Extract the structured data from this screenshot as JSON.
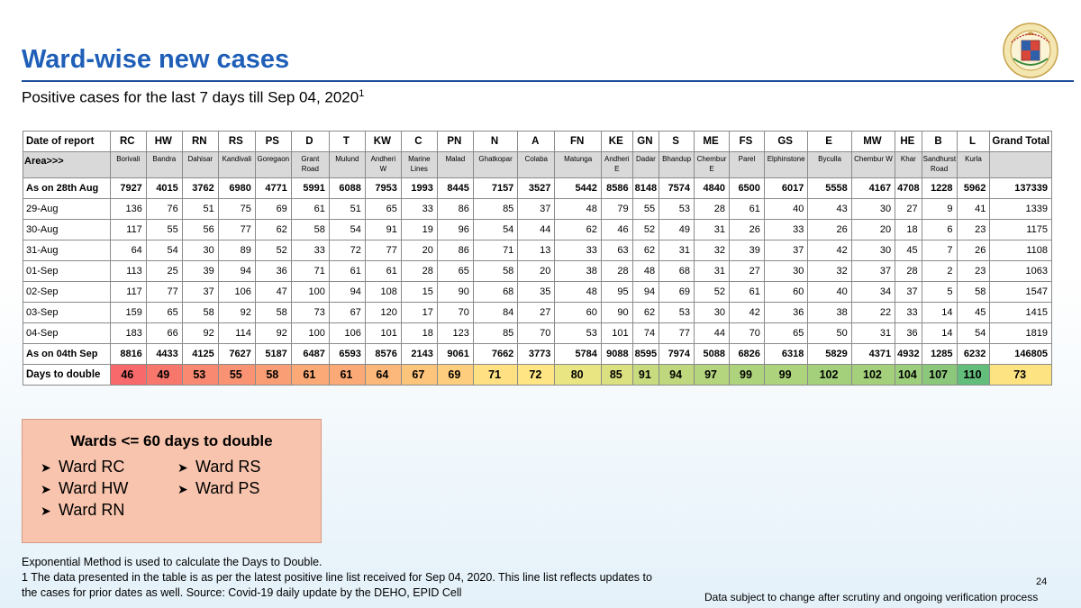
{
  "title": "Ward-wise new cases",
  "subtitle": "Positive cases for the last 7 days till Sep 04, 2020",
  "subtitle_sup": "1",
  "logo_text": "Brihanmumbai Municipal Corporation",
  "table": {
    "header_label": "Date of report",
    "columns": [
      "RC",
      "HW",
      "RN",
      "RS",
      "PS",
      "D",
      "T",
      "KW",
      "C",
      "PN",
      "N",
      "A",
      "FN",
      "KE",
      "GN",
      "S",
      "ME",
      "FS",
      "GS",
      "E",
      "MW",
      "HE",
      "B",
      "L",
      "Grand Total"
    ],
    "area_label": "Area>>>",
    "areas": [
      "Borivali",
      "Bandra",
      "Dahisar",
      "Kandivali",
      "Goregaon",
      "Grant Road",
      "Mulund",
      "Andheri W",
      "Marine Lines",
      "Malad",
      "Ghatkopar",
      "Colaba",
      "Matunga",
      "Andheri E",
      "Dadar",
      "Bhandup",
      "Chembur E",
      "Parel",
      "Elphinstone",
      "Byculla",
      "Chembur W",
      "Khar",
      "Sandhurst Road",
      "Kurla",
      ""
    ],
    "rows": [
      {
        "label": "As on 28th Aug",
        "bold": true,
        "values": [
          "7927",
          "4015",
          "3762",
          "6980",
          "4771",
          "5991",
          "6088",
          "7953",
          "1993",
          "8445",
          "7157",
          "3527",
          "5442",
          "8586",
          "8148",
          "7574",
          "4840",
          "6500",
          "6017",
          "5558",
          "4167",
          "4708",
          "1228",
          "5962",
          "137339"
        ]
      },
      {
        "label": "29-Aug",
        "bold": false,
        "values": [
          "136",
          "76",
          "51",
          "75",
          "69",
          "61",
          "51",
          "65",
          "33",
          "86",
          "85",
          "37",
          "48",
          "79",
          "55",
          "53",
          "28",
          "61",
          "40",
          "43",
          "30",
          "27",
          "9",
          "41",
          "1339"
        ]
      },
      {
        "label": "30-Aug",
        "bold": false,
        "values": [
          "117",
          "55",
          "56",
          "77",
          "62",
          "58",
          "54",
          "91",
          "19",
          "96",
          "54",
          "44",
          "62",
          "46",
          "52",
          "49",
          "31",
          "26",
          "33",
          "26",
          "20",
          "18",
          "6",
          "23",
          "1175"
        ]
      },
      {
        "label": "31-Aug",
        "bold": false,
        "values": [
          "64",
          "54",
          "30",
          "89",
          "52",
          "33",
          "72",
          "77",
          "20",
          "86",
          "71",
          "13",
          "33",
          "63",
          "62",
          "31",
          "32",
          "39",
          "37",
          "42",
          "30",
          "45",
          "7",
          "26",
          "1108"
        ]
      },
      {
        "label": "01-Sep",
        "bold": false,
        "values": [
          "113",
          "25",
          "39",
          "94",
          "36",
          "71",
          "61",
          "61",
          "28",
          "65",
          "58",
          "20",
          "38",
          "28",
          "48",
          "68",
          "31",
          "27",
          "30",
          "32",
          "37",
          "28",
          "2",
          "23",
          "1063"
        ]
      },
      {
        "label": "02-Sep",
        "bold": false,
        "values": [
          "117",
          "77",
          "37",
          "106",
          "47",
          "100",
          "94",
          "108",
          "15",
          "90",
          "68",
          "35",
          "48",
          "95",
          "94",
          "69",
          "52",
          "61",
          "60",
          "40",
          "34",
          "37",
          "5",
          "58",
          "1547"
        ]
      },
      {
        "label": "03-Sep",
        "bold": false,
        "values": [
          "159",
          "65",
          "58",
          "92",
          "58",
          "73",
          "67",
          "120",
          "17",
          "70",
          "84",
          "27",
          "60",
          "90",
          "62",
          "53",
          "30",
          "42",
          "36",
          "38",
          "22",
          "33",
          "14",
          "45",
          "1415"
        ]
      },
      {
        "label": "04-Sep",
        "bold": false,
        "values": [
          "183",
          "66",
          "92",
          "114",
          "92",
          "100",
          "106",
          "101",
          "18",
          "123",
          "85",
          "70",
          "53",
          "101",
          "74",
          "77",
          "44",
          "70",
          "65",
          "50",
          "31",
          "36",
          "14",
          "54",
          "1819"
        ]
      },
      {
        "label": "As on 04th Sep",
        "bold": true,
        "values": [
          "8816",
          "4433",
          "4125",
          "7627",
          "5187",
          "6487",
          "6593",
          "8576",
          "2143",
          "9061",
          "7662",
          "3773",
          "5784",
          "9088",
          "8595",
          "7974",
          "5088",
          "6826",
          "6318",
          "5829",
          "4371",
          "4932",
          "1285",
          "6232",
          "146805"
        ]
      }
    ],
    "double_label": "Days to double",
    "double_values": [
      "46",
      "49",
      "53",
      "55",
      "58",
      "61",
      "61",
      "64",
      "67",
      "69",
      "71",
      "72",
      "80",
      "85",
      "91",
      "94",
      "97",
      "99",
      "99",
      "102",
      "102",
      "104",
      "107",
      "110",
      "73"
    ],
    "double_colors": [
      "#f8696b",
      "#f8776d",
      "#f98a71",
      "#f99373",
      "#fa9f75",
      "#fbaa77",
      "#fbaa77",
      "#fcb87a",
      "#fdc57c",
      "#fecd7e",
      "#ffe083",
      "#ffe584",
      "#eae583",
      "#dbe081",
      "#c8db7f",
      "#bfd87e",
      "#b4d57e",
      "#aed37d",
      "#aed37d",
      "#a4d07c",
      "#a4d07c",
      "#9dce7c",
      "#8cc87b",
      "#63be7b",
      "#fee382"
    ]
  },
  "wards_box": {
    "title": "Wards <= 60 days to double",
    "items": [
      "Ward RC",
      "Ward HW",
      "Ward RN",
      "Ward RS",
      "Ward PS"
    ]
  },
  "footnote": {
    "line1": "Exponential Method is used to calculate the Days to Double.",
    "line2": "1 The data presented in the table is as per the latest positive line list received for Sep 04, 2020. This line list reflects updates to the cases for prior dates as well. Source: Covid-19 daily update by the DEHO, EPID Cell"
  },
  "page_number": "24",
  "disclaimer": "Data subject to change after scrutiny and ongoing verification process"
}
